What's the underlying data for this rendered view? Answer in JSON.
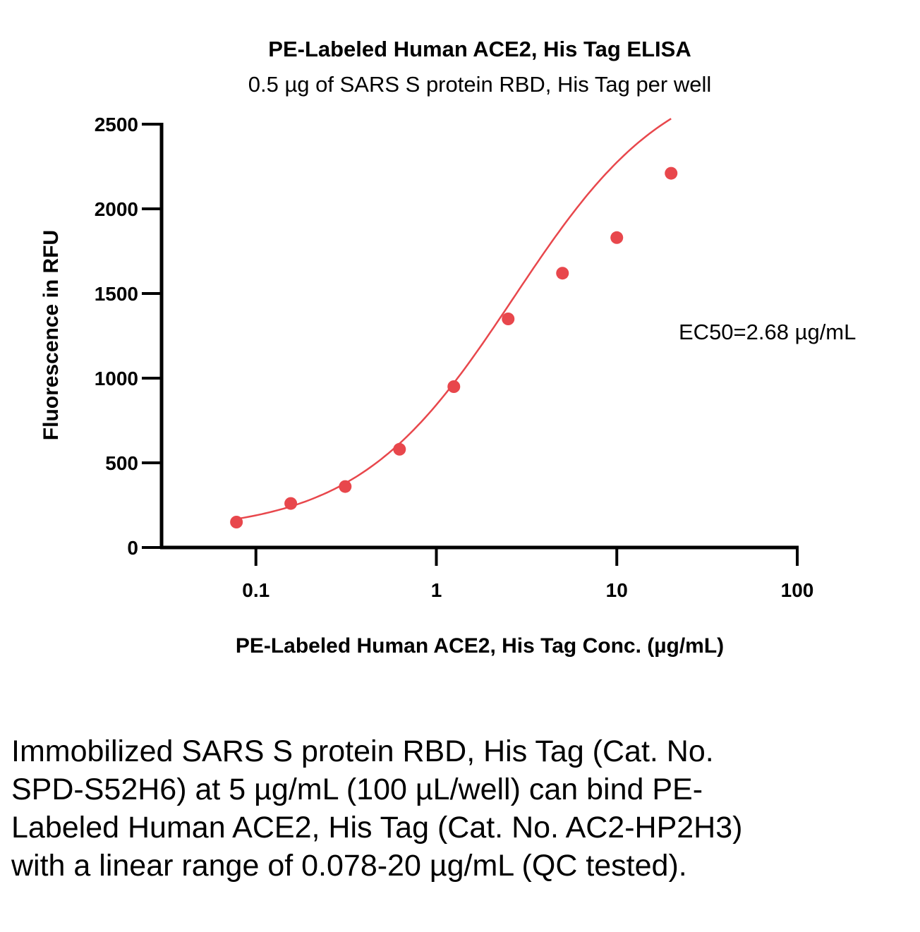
{
  "chart_data": {
    "type": "scatter",
    "title": "PE-Labeled Human ACE2, His Tag ELISA",
    "subtitle": "0.5 µg of SARS S protein RBD, His Tag per well",
    "xlabel": "PE-Labeled Human ACE2, His Tag Conc. (µg/mL)",
    "ylabel": "Fluorescence in RFU",
    "x_scale": "log",
    "xlim": [
      0.03,
      100
    ],
    "ylim": [
      0,
      2500
    ],
    "x_ticks": [
      0.1,
      1,
      10,
      100
    ],
    "x_tick_labels": [
      "0.1",
      "1",
      "10",
      "100"
    ],
    "y_ticks": [
      0,
      500,
      1000,
      1500,
      2000,
      2500
    ],
    "y_tick_labels": [
      "0",
      "500",
      "1000",
      "1500",
      "2000",
      "2500"
    ],
    "grid": false,
    "color": "#e8474c",
    "series": [
      {
        "x": [
          0.078,
          0.156,
          0.3125,
          0.625,
          1.25,
          2.5,
          5,
          10,
          20
        ],
        "y": [
          150,
          260,
          360,
          580,
          950,
          1350,
          1620,
          1830,
          2210
        ]
      }
    ],
    "fit_curve": {
      "type": "4PL",
      "bottom": 90,
      "top": 2860,
      "ec50": 2.68,
      "hill": 1.0,
      "x_range": [
        0.078,
        20
      ]
    },
    "annotation": "EC50=2.68 µg/mL"
  },
  "caption": "Immobilized SARS S protein RBD, His Tag (Cat. No. SPD-S52H6) at 5 µg/mL (100 µL/well) can bind PE-Labeled Human ACE2, His Tag (Cat. No. AC2-HP2H3) with a linear range of 0.078-20 µg/mL (QC tested)."
}
